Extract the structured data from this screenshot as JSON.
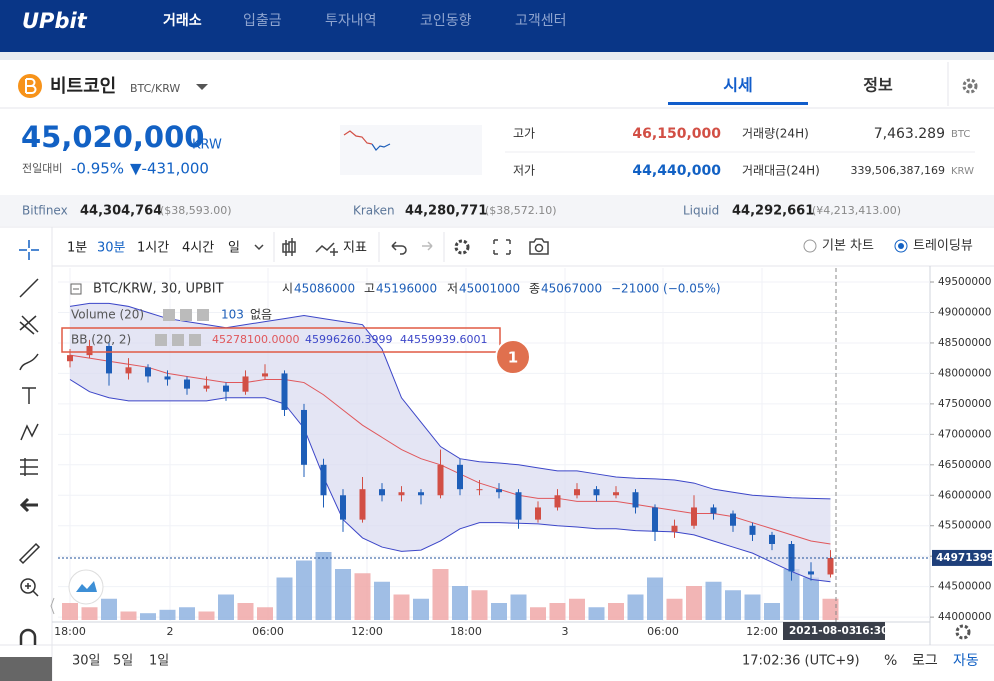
{
  "header": {
    "logo": "UPbit",
    "nav": [
      "거래소",
      "입출금",
      "투자내역",
      "코인동향",
      "고객센터"
    ]
  },
  "coin": {
    "name": "비트코인",
    "pair": "BTC/KRW",
    "tabs": [
      "시세",
      "정보"
    ]
  },
  "price": {
    "value": "45,020,000",
    "unit": "KRW",
    "change_label": "전일대비",
    "change_pct": "-0.95%",
    "change_amt": "▼-431,000"
  },
  "stats": [
    {
      "label": "고가",
      "value": "46,150,000"
    },
    {
      "label": "저가",
      "value": "44,440,000"
    }
  ],
  "volume_stats": [
    {
      "label": "거래량(24H)",
      "value": "7,463.289",
      "unit": "BTC"
    },
    {
      "label": "거래대금(24H)",
      "value": "339,506,387,169",
      "unit": "KRW"
    }
  ],
  "exchanges": [
    {
      "name": "Bitfinex",
      "price": "44,304,764",
      "foreign": "($38,593.00)"
    },
    {
      "name": "Kraken",
      "price": "44,280,771",
      "foreign": "($38,572.10)"
    },
    {
      "name": "Liquid",
      "price": "44,292,661",
      "foreign": "(¥4,213,413.00)"
    }
  ],
  "toolbar": {
    "intervals": [
      "1분",
      "30분",
      "1시간",
      "4시간",
      "일"
    ],
    "indicator": "지표",
    "chart_types": [
      "기본 차트",
      "트레이딩뷰"
    ]
  },
  "chart": {
    "type": "candlestick",
    "symbol": "BTC/KRW, 30, UPBIT",
    "ohlc": [
      {
        "label": "시",
        "value": "45086000"
      },
      {
        "label": "고",
        "value": "45196000"
      },
      {
        "label": "저",
        "value": "45001000"
      },
      {
        "label": "종",
        "value": "45067000"
      }
    ],
    "change": "−21000 (−0.05%)",
    "volume_legend": {
      "name": "Volume (20)",
      "value": "103",
      "extra": "없음"
    },
    "bb_legend": {
      "name": "BB (20, 2)",
      "values": [
        "45278100.0000",
        "45996260.3999",
        "44559939.6001"
      ]
    },
    "annotation": "1",
    "up_color": "#d24f45",
    "down_color": "#1e5eb8",
    "band_colors": {
      "upper": "#3c46c8",
      "middle": "#e0575b",
      "lower": "#3c46c8",
      "fill": "#d8daf0"
    },
    "ylim": [
      43920000,
      49730000
    ],
    "yticks": [
      44000000,
      44500000,
      45000000,
      45500000,
      46000000,
      46500000,
      47000000,
      47500000,
      48000000,
      48500000,
      49000000,
      49500000
    ],
    "xtick_labels": [
      "18:00",
      "2",
      "06:00",
      "12:00",
      "18:00",
      "3",
      "06:00",
      "12:00"
    ],
    "candles": [
      [
        48200000,
        48400000,
        48100000,
        48300000
      ],
      [
        48300000,
        48550000,
        48250000,
        48450000
      ],
      [
        48450000,
        48500000,
        47800000,
        48000000
      ],
      [
        48000000,
        48250000,
        47900000,
        48100000
      ],
      [
        48100000,
        48150000,
        47850000,
        47950000
      ],
      [
        47950000,
        48050000,
        47800000,
        47900000
      ],
      [
        47900000,
        47950000,
        47650000,
        47750000
      ],
      [
        47750000,
        47950000,
        47700000,
        47800000
      ],
      [
        47800000,
        47850000,
        47550000,
        47700000
      ],
      [
        47700000,
        48050000,
        47650000,
        47950000
      ],
      [
        47950000,
        48150000,
        47900000,
        48000000
      ],
      [
        48000000,
        48050000,
        47300000,
        47400000
      ],
      [
        47400000,
        47500000,
        46300000,
        46500000
      ],
      [
        46500000,
        46600000,
        45800000,
        46000000
      ],
      [
        46000000,
        46100000,
        45400000,
        45600000
      ],
      [
        45600000,
        46300000,
        45550000,
        46100000
      ],
      [
        46100000,
        46200000,
        45900000,
        46000000
      ],
      [
        46000000,
        46150000,
        45900000,
        46050000
      ],
      [
        46050000,
        46100000,
        45850000,
        46000000
      ],
      [
        46000000,
        46750000,
        45950000,
        46500000
      ],
      [
        46500000,
        46600000,
        46000000,
        46100000
      ],
      [
        46100000,
        46250000,
        46000000,
        46100000
      ],
      [
        46100000,
        46200000,
        45950000,
        46050000
      ],
      [
        46050000,
        46100000,
        45450000,
        45600000
      ],
      [
        45600000,
        45900000,
        45550000,
        45800000
      ],
      [
        45800000,
        46100000,
        45750000,
        46000000
      ],
      [
        46000000,
        46200000,
        45950000,
        46100000
      ],
      [
        46100000,
        46150000,
        45900000,
        46000000
      ],
      [
        46000000,
        46150000,
        45950000,
        46050000
      ],
      [
        46050000,
        46100000,
        45700000,
        45800000
      ],
      [
        45800000,
        45850000,
        45250000,
        45400000
      ],
      [
        45400000,
        45600000,
        45300000,
        45500000
      ],
      [
        45500000,
        46000000,
        45450000,
        45800000
      ],
      [
        45800000,
        45850000,
        45600000,
        45700000
      ],
      [
        45700000,
        45750000,
        45400000,
        45500000
      ],
      [
        45500000,
        45550000,
        45250000,
        45350000
      ],
      [
        45350000,
        45400000,
        45100000,
        45200000
      ],
      [
        45200000,
        45250000,
        44600000,
        44750000
      ],
      [
        44750000,
        44900000,
        44600000,
        44700000
      ],
      [
        44700000,
        45100000,
        44650000,
        44970000
      ]
    ],
    "volume": [
      20,
      15,
      25,
      10,
      8,
      12,
      15,
      10,
      30,
      20,
      15,
      50,
      70,
      80,
      60,
      55,
      45,
      30,
      25,
      60,
      40,
      35,
      20,
      30,
      15,
      20,
      25,
      15,
      20,
      30,
      50,
      25,
      40,
      45,
      35,
      30,
      20,
      60,
      50,
      25
    ],
    "bb_upper": [
      49100000,
      49150000,
      49150000,
      49100000,
      49000000,
      48900000,
      48850000,
      48800000,
      48750000,
      48800000,
      48850000,
      48900000,
      48950000,
      48900000,
      48850000,
      48800000,
      48400000,
      47600000,
      47200000,
      46800000,
      46600000,
      46550000,
      46530000,
      46500000,
      46450000,
      46400000,
      46400000,
      46350000,
      46300000,
      46280000,
      46270000,
      46250000,
      46200000,
      46100000,
      46050000,
      46000000,
      45980000,
      45960000,
      45950000,
      45940000
    ],
    "bb_middle": [
      48300000,
      48250000,
      48200000,
      48150000,
      48100000,
      48000000,
      47950000,
      47900000,
      47850000,
      47850000,
      47900000,
      47900000,
      47850000,
      47650000,
      47400000,
      47150000,
      46950000,
      46750000,
      46600000,
      46500000,
      46350000,
      46200000,
      46100000,
      46000000,
      45950000,
      45950000,
      45900000,
      45900000,
      45900000,
      45850000,
      45800000,
      45750000,
      45700000,
      45700000,
      45650000,
      45550000,
      45450000,
      45350000,
      45250000,
      45200000
    ],
    "bb_lower": [
      47900000,
      47700000,
      47600000,
      47550000,
      47550000,
      47550000,
      47550000,
      47550000,
      47600000,
      47600000,
      47600000,
      47500000,
      47100000,
      46300000,
      45600000,
      45300000,
      45150000,
      45080000,
      45100000,
      45250000,
      45450000,
      45550000,
      45550000,
      45540000,
      45530000,
      45500000,
      45480000,
      45450000,
      45450000,
      45420000,
      45410000,
      45400000,
      45350000,
      45250000,
      45150000,
      45050000,
      44900000,
      44750000,
      44620000,
      44580000
    ],
    "last_price": 44971399,
    "date_label": "2021-08-03",
    "time_label": "16:30"
  },
  "footer": {
    "ranges": [
      "30일",
      "5일",
      "1일"
    ],
    "clock": "17:02:36 (UTC+9)",
    "options": [
      "%",
      "로그",
      "자동"
    ]
  }
}
